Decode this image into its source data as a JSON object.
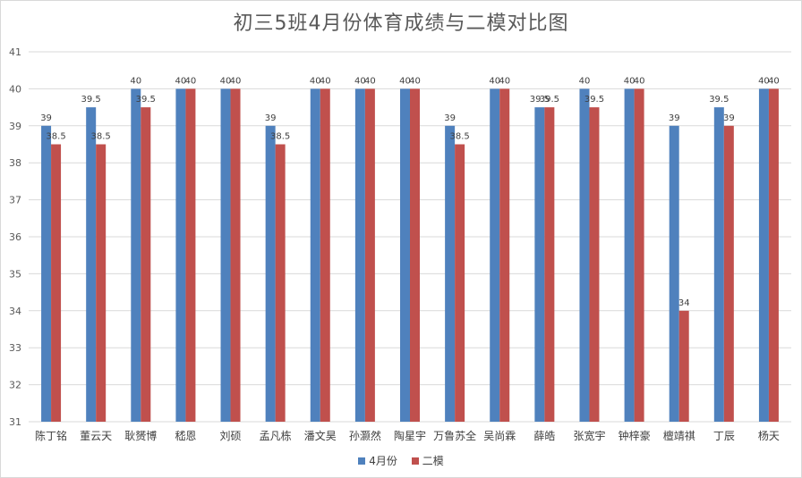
{
  "chart_data": {
    "type": "bar",
    "title": "初三5班4月份体育成绩与二模对比图",
    "categories": [
      "陈丁铭",
      "董云天",
      "耿赟博",
      "嵇恩",
      "刘硕",
      "孟凡栋",
      "潘文昊",
      "孙灏然",
      "陶星宇",
      "万鲁苏全",
      "吴尚霖",
      "薛皓",
      "张宽宇",
      "钟梓豪",
      "檀靖祺",
      "丁辰",
      "杨天"
    ],
    "series": [
      {
        "name": "4月份",
        "color": "#4f81bd",
        "values": [
          39,
          39.5,
          40,
          40,
          40,
          39,
          40,
          40,
          40,
          39,
          40,
          39.5,
          40,
          40,
          39,
          39.5,
          40
        ]
      },
      {
        "name": "二模",
        "color": "#c0504d",
        "values": [
          38.5,
          38.5,
          39.5,
          40,
          40,
          38.5,
          40,
          40,
          40,
          38.5,
          40,
          39.5,
          39.5,
          40,
          34,
          39,
          40
        ]
      }
    ],
    "ylim": [
      31,
      41
    ],
    "yticks": [
      31,
      32,
      33,
      34,
      35,
      36,
      37,
      38,
      39,
      40,
      41
    ],
    "grid": true,
    "legend": "bottom"
  }
}
